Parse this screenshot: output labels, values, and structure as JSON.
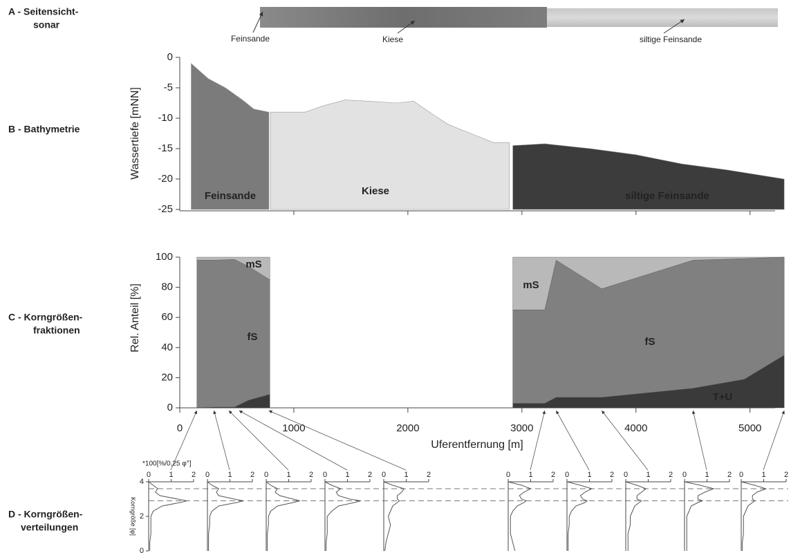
{
  "panel_labels": [
    [
      "A - Seitensicht-",
      "sonar"
    ],
    [
      "B - Bathymetrie"
    ],
    [
      "C - Korngrößen-",
      "fraktionen"
    ],
    [
      "D - Korngrößen-",
      "verteilungen"
    ]
  ],
  "sonar": {
    "labels": [
      "Feinsande",
      "Kiese",
      "siltige Feinsande"
    ]
  },
  "chart_data": [
    {
      "type": "area",
      "ylabel": "Wassertiefe [mNN]",
      "xlim": [
        0,
        5220
      ],
      "ylim": [
        -25,
        0
      ],
      "yticks": [
        -25,
        -20,
        -15,
        -10,
        -5,
        0
      ],
      "xticks": [
        1000,
        2000,
        3000,
        4000,
        5000
      ],
      "xtick_labels": false,
      "regions": [
        {
          "label": "Feinsande",
          "color": "#7b7b7b",
          "x": [
            100,
            250,
            400,
            550,
            650,
            782
          ],
          "values": [
            -1,
            -3.5,
            -5,
            -7,
            -8.5,
            -9
          ]
        },
        {
          "label": "Kiese",
          "color": "#e2e2e2",
          "x": [
            795,
            1100,
            1250,
            1450,
            1650,
            1900,
            2050,
            2150,
            2350,
            2550,
            2750,
            2890
          ],
          "values": [
            -9,
            -9,
            -8,
            -7,
            -7.2,
            -7.5,
            -7.2,
            -8.5,
            -11,
            -12.5,
            -14,
            -14
          ]
        },
        {
          "label": "siltige Feinsande",
          "color": "#3c3c3c",
          "x": [
            2920,
            3200,
            3600,
            4000,
            4400,
            4800,
            5300
          ],
          "values": [
            -14.5,
            -14.2,
            -15,
            -16,
            -17.5,
            -18.5,
            -20
          ]
        }
      ]
    },
    {
      "type": "stacked_area",
      "ylabel": "Rel. Anteil [%]",
      "xlabel": "Uferentfernung [m]",
      "xlim": [
        0,
        5220
      ],
      "ylim": [
        0,
        100
      ],
      "yticks": [
        0,
        20,
        40,
        60,
        80,
        100
      ],
      "xticks": [
        0,
        1000,
        2000,
        3000,
        4000,
        5000
      ],
      "x": [
        150,
        300,
        480,
        600,
        790,
        2920,
        3200,
        3300,
        3700,
        4500,
        4950,
        5300
      ],
      "series": [
        {
          "name": "T+U",
          "color": "#3a3a3a",
          "values": [
            0,
            0.5,
            0.5,
            5,
            9,
            3,
            3,
            7,
            7,
            13,
            19,
            35
          ]
        },
        {
          "name": "fS",
          "color": "#808080",
          "values": [
            98,
            97.5,
            98,
            89,
            76,
            62,
            62,
            91,
            72,
            85,
            80,
            65
          ]
        },
        {
          "name": "mS",
          "color": "#b9b9b9",
          "values": [
            2,
            2,
            1.5,
            6,
            15,
            35,
            35,
            2,
            21,
            2,
            1,
            0
          ]
        }
      ]
    },
    {
      "type": "profiles",
      "unit_label": "*100[%/0,25 φ°]",
      "ylabel": "Korngröße [φ]",
      "xlim": [
        0,
        2
      ],
      "xticks": [
        0,
        1,
        2
      ],
      "ylim": [
        0,
        4
      ],
      "yticks": [
        0,
        2,
        4
      ],
      "reference_lines": [
        2.9,
        3.6
      ],
      "sample_x": [
        150,
        300,
        430,
        520,
        780,
        3200,
        3300,
        3700,
        4500,
        5300
      ],
      "y": [
        0,
        0.5,
        1,
        1.5,
        2,
        2.3,
        2.6,
        2.8,
        2.9,
        3.0,
        3.2,
        3.4,
        3.6,
        3.8,
        4
      ],
      "samples": [
        [
          0.05,
          0.05,
          0.1,
          0.1,
          0.1,
          0.2,
          0.6,
          1.4,
          1.7,
          1.3,
          0.5,
          0.3,
          0.4,
          0.2,
          0
        ],
        [
          0.05,
          0.05,
          0.05,
          0.1,
          0.1,
          0.2,
          0.5,
          1.3,
          1.6,
          1.2,
          0.5,
          0.4,
          0.5,
          0.2,
          0
        ],
        [
          0.05,
          0.05,
          0.05,
          0.1,
          0.1,
          0.2,
          0.5,
          1.2,
          1.5,
          1.2,
          0.6,
          0.4,
          0.5,
          0.2,
          0
        ],
        [
          0.05,
          0.05,
          0.1,
          0.1,
          0.1,
          0.3,
          0.6,
          1.3,
          1.6,
          1.1,
          0.6,
          0.5,
          0.7,
          0.3,
          0
        ],
        [
          0.05,
          0.1,
          0.2,
          0.3,
          0.2,
          0.3,
          0.4,
          0.6,
          0.7,
          0.6,
          0.6,
          0.8,
          0.9,
          0.4,
          0
        ],
        [
          0.3,
          0.2,
          0.1,
          0.1,
          0.1,
          0.2,
          0.4,
          0.7,
          0.8,
          0.6,
          0.5,
          0.7,
          1.0,
          0.6,
          0
        ],
        [
          0.05,
          0.05,
          0.05,
          0.1,
          0.1,
          0.2,
          0.4,
          0.8,
          0.9,
          0.7,
          0.6,
          0.8,
          1.1,
          0.6,
          0
        ],
        [
          0.1,
          0.1,
          0.1,
          0.2,
          0.2,
          0.3,
          0.4,
          0.6,
          0.7,
          0.5,
          0.5,
          0.7,
          0.9,
          0.5,
          0
        ],
        [
          0.1,
          0.1,
          0.1,
          0.1,
          0.1,
          0.2,
          0.3,
          0.6,
          0.8,
          0.6,
          0.6,
          0.9,
          1.3,
          0.7,
          0
        ],
        [
          0.05,
          0.05,
          0.1,
          0.1,
          0.1,
          0.2,
          0.3,
          0.5,
          0.6,
          0.5,
          0.5,
          0.7,
          1.1,
          0.6,
          0
        ]
      ]
    }
  ]
}
